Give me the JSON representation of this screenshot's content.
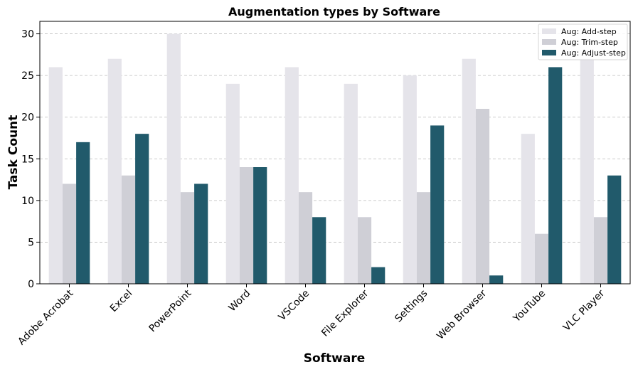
{
  "chart_data": {
    "type": "bar",
    "title": "Augmentation types by Software",
    "xlabel": "Software",
    "ylabel": "Task Count",
    "ylim": [
      0,
      31.5
    ],
    "yticks": [
      0,
      5,
      10,
      15,
      20,
      25,
      30
    ],
    "grid": true,
    "legend_position": "top-right",
    "categories": [
      "Adobe Acrobat",
      "Excel",
      "PowerPoint",
      "Word",
      "VSCode",
      "File Explorer",
      "Settings",
      "Web Browser",
      "YouTube",
      "VLC Player"
    ],
    "series": [
      {
        "name": "Aug: Add-step",
        "color": "#e5e4ea",
        "values": [
          26,
          27,
          30,
          24,
          26,
          24,
          25,
          27,
          18,
          27
        ]
      },
      {
        "name": "Aug: Trim-step",
        "color": "#cfcfd6",
        "values": [
          12,
          13,
          11,
          14,
          11,
          8,
          11,
          21,
          6,
          8
        ]
      },
      {
        "name": "Aug: Adjust-step",
        "color": "#215a6b",
        "values": [
          17,
          18,
          12,
          14,
          8,
          2,
          19,
          1,
          26,
          13
        ]
      }
    ]
  }
}
